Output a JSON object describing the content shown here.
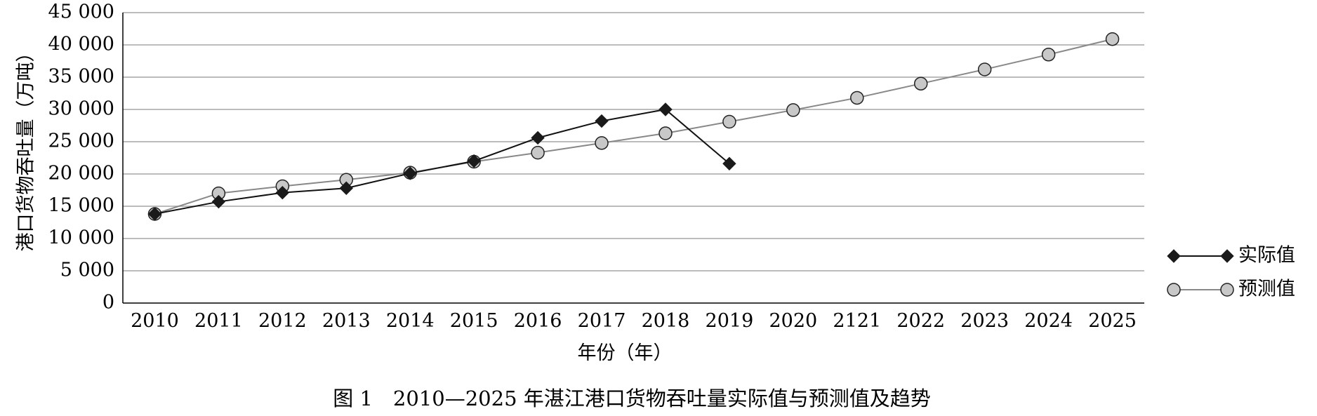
{
  "chart_data": {
    "type": "line",
    "xlabel": "年份（年）",
    "ylabel": "港口货物吞吐量（万吨）",
    "caption": "图 1　2010—2025 年湛江港口货物吞吐量实际值与预测值及趋势",
    "categories": [
      "2010",
      "2011",
      "2012",
      "2013",
      "2014",
      "2015",
      "2016",
      "2017",
      "2018",
      "2019",
      "2020",
      "2121",
      "2022",
      "2023",
      "2024",
      "2025"
    ],
    "yticks": [
      "0",
      "5 000",
      "10 000",
      "15 000",
      "20 000",
      "25 000",
      "30 000",
      "35 000",
      "40 000",
      "45 000"
    ],
    "ylim": [
      0,
      45000
    ],
    "grid": true,
    "legend_position": "right",
    "series": [
      {
        "name": "实际值",
        "marker": "diamond",
        "color": "#000000",
        "values": [
          13800,
          15700,
          17100,
          17800,
          20100,
          22000,
          25600,
          28200,
          30000,
          21600,
          null,
          null,
          null,
          null,
          null,
          null
        ]
      },
      {
        "name": "预测值",
        "marker": "circle",
        "color": "#808080",
        "fill": "#c8c8c8",
        "values": [
          13800,
          17000,
          18100,
          19100,
          20200,
          21900,
          23300,
          24800,
          26300,
          28100,
          29900,
          31800,
          34000,
          36200,
          38500,
          40900
        ]
      }
    ]
  }
}
